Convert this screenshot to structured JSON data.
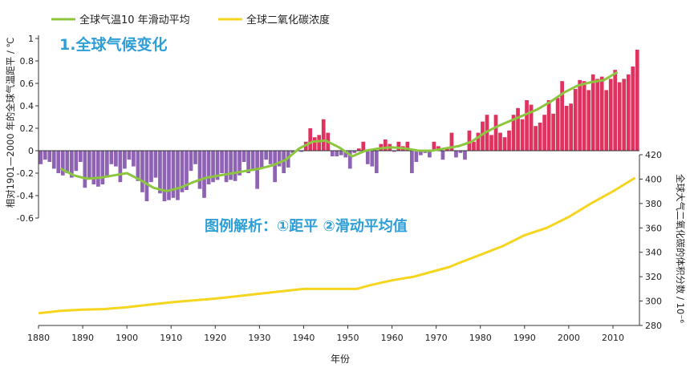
{
  "legend": {
    "temp_smooth_label": "全球气温10 年滑动平均",
    "co2_label": "全球二氧化碳浓度"
  },
  "panel_title": "1.全球气候变化",
  "annotation": "图例解析：①距平 ②滑动平均值",
  "colors": {
    "positive_bar": "#E0325F",
    "negative_bar": "#8E63B3",
    "smooth_line": "#8CC63F",
    "co2_line": "#F5D51E",
    "title_color": "#2E9FD6",
    "axis": "#333333"
  },
  "chart_data": [
    {
      "type": "bar",
      "xlabel": "年份",
      "ylabel": "相对1901—2000 年的全球气温距平 / ℃",
      "xlim": [
        1880,
        2016
      ],
      "ylim": [
        -0.6,
        1.0
      ],
      "x_ticks": [
        1880,
        1890,
        1900,
        1910,
        1920,
        1930,
        1940,
        1950,
        1960,
        1970,
        1980,
        1990,
        2000,
        2010
      ],
      "y_ticks": [
        -0.6,
        -0.4,
        -0.2,
        0,
        0.2,
        0.4,
        0.6,
        0.8,
        1
      ],
      "y_tick_labels": [
        "-0.6",
        "-0.4",
        "-0.2",
        "0",
        "0.2",
        "0.4",
        "0.6",
        "0.8",
        "1"
      ],
      "x": [
        1880,
        1881,
        1882,
        1883,
        1884,
        1885,
        1886,
        1887,
        1888,
        1889,
        1890,
        1891,
        1892,
        1893,
        1894,
        1895,
        1896,
        1897,
        1898,
        1899,
        1900,
        1901,
        1902,
        1903,
        1904,
        1905,
        1906,
        1907,
        1908,
        1909,
        1910,
        1911,
        1912,
        1913,
        1914,
        1915,
        1916,
        1917,
        1918,
        1919,
        1920,
        1921,
        1922,
        1923,
        1924,
        1925,
        1926,
        1927,
        1928,
        1929,
        1930,
        1931,
        1932,
        1933,
        1934,
        1935,
        1936,
        1937,
        1938,
        1939,
        1940,
        1941,
        1942,
        1943,
        1944,
        1945,
        1946,
        1947,
        1948,
        1949,
        1950,
        1951,
        1952,
        1953,
        1954,
        1955,
        1956,
        1957,
        1958,
        1959,
        1960,
        1961,
        1962,
        1963,
        1964,
        1965,
        1966,
        1967,
        1968,
        1969,
        1970,
        1971,
        1972,
        1973,
        1974,
        1975,
        1976,
        1977,
        1978,
        1979,
        1980,
        1981,
        1982,
        1983,
        1984,
        1985,
        1986,
        1987,
        1988,
        1989,
        1990,
        1991,
        1992,
        1993,
        1994,
        1995,
        1996,
        1997,
        1998,
        1999,
        2000,
        2001,
        2002,
        2003,
        2004,
        2005,
        2006,
        2007,
        2008,
        2009,
        2010,
        2011,
        2012,
        2013,
        2014,
        2015
      ],
      "values": [
        -0.12,
        -0.08,
        -0.1,
        -0.16,
        -0.2,
        -0.22,
        -0.2,
        -0.24,
        -0.18,
        -0.1,
        -0.33,
        -0.25,
        -0.3,
        -0.32,
        -0.3,
        -0.24,
        -0.12,
        -0.14,
        -0.28,
        -0.16,
        -0.08,
        -0.14,
        -0.27,
        -0.37,
        -0.45,
        -0.28,
        -0.24,
        -0.38,
        -0.45,
        -0.44,
        -0.42,
        -0.44,
        -0.37,
        -0.35,
        -0.18,
        -0.12,
        -0.34,
        -0.42,
        -0.3,
        -0.28,
        -0.26,
        -0.2,
        -0.28,
        -0.26,
        -0.27,
        -0.22,
        -0.1,
        -0.2,
        -0.18,
        -0.34,
        -0.15,
        -0.08,
        -0.12,
        -0.28,
        -0.14,
        -0.2,
        -0.15,
        -0.02,
        0,
        -0.01,
        0.08,
        0.2,
        0.12,
        0.14,
        0.28,
        0.16,
        -0.05,
        -0.05,
        -0.04,
        -0.06,
        -0.16,
        -0.02,
        0.02,
        0.08,
        -0.12,
        -0.14,
        -0.2,
        0.06,
        0.1,
        0.06,
        -0.01,
        0.08,
        0.04,
        0.08,
        -0.2,
        -0.1,
        -0.04,
        -0.02,
        -0.06,
        0.08,
        0.04,
        -0.08,
        0.02,
        0.16,
        -0.06,
        -0.02,
        -0.08,
        0.18,
        0.08,
        0.16,
        0.26,
        0.32,
        0.14,
        0.32,
        0.16,
        0.12,
        0.18,
        0.32,
        0.38,
        0.28,
        0.45,
        0.41,
        0.22,
        0.25,
        0.32,
        0.45,
        0.33,
        0.47,
        0.62,
        0.4,
        0.42,
        0.55,
        0.63,
        0.62,
        0.54,
        0.68,
        0.64,
        0.66,
        0.54,
        0.64,
        0.72,
        0.61,
        0.64,
        0.68,
        0.75,
        0.9
      ],
      "series": [
        {
          "name": "全球气温10 年滑动平均",
          "x": [
            1885,
            1888,
            1891,
            1894,
            1897,
            1900,
            1903,
            1906,
            1909,
            1912,
            1915,
            1918,
            1921,
            1924,
            1927,
            1930,
            1933,
            1936,
            1939,
            1942,
            1945,
            1948,
            1951,
            1954,
            1957,
            1960,
            1963,
            1966,
            1969,
            1972,
            1975,
            1978,
            1981,
            1984,
            1987,
            1990,
            1993,
            1996,
            1999,
            2002,
            2005,
            2008,
            2011
          ],
          "values": [
            -0.16,
            -0.22,
            -0.25,
            -0.24,
            -0.22,
            -0.2,
            -0.26,
            -0.33,
            -0.36,
            -0.33,
            -0.28,
            -0.24,
            -0.22,
            -0.2,
            -0.18,
            -0.16,
            -0.13,
            -0.08,
            0.02,
            0.08,
            0.09,
            0.03,
            -0.05,
            0,
            0.02,
            0.03,
            0.02,
            0,
            0,
            0.02,
            0.04,
            0.08,
            0.16,
            0.22,
            0.27,
            0.32,
            0.37,
            0.44,
            0.52,
            0.58,
            0.61,
            0.63,
            0.7
          ]
        }
      ]
    },
    {
      "type": "line",
      "ylabel": "全球大气二氧化碳的体积分数 / 10⁻⁶",
      "ylim": [
        280,
        420
      ],
      "y_ticks": [
        280,
        300,
        320,
        340,
        360,
        380,
        400,
        420
      ],
      "series": [
        {
          "name": "全球二氧化碳浓度",
          "x": [
            1880,
            1885,
            1890,
            1895,
            1900,
            1905,
            1910,
            1915,
            1920,
            1925,
            1930,
            1935,
            1940,
            1945,
            1950,
            1952,
            1955,
            1960,
            1965,
            1970,
            1973,
            1975,
            1980,
            1985,
            1990,
            1995,
            2000,
            2005,
            2010,
            2015
          ],
          "values": [
            290,
            292,
            293,
            293.5,
            295,
            297,
            299,
            300.5,
            302,
            304,
            306,
            308,
            310,
            310,
            310,
            310,
            313,
            317,
            320,
            325,
            328,
            331,
            338,
            345,
            354,
            360,
            369,
            380,
            390,
            401
          ]
        }
      ]
    }
  ]
}
